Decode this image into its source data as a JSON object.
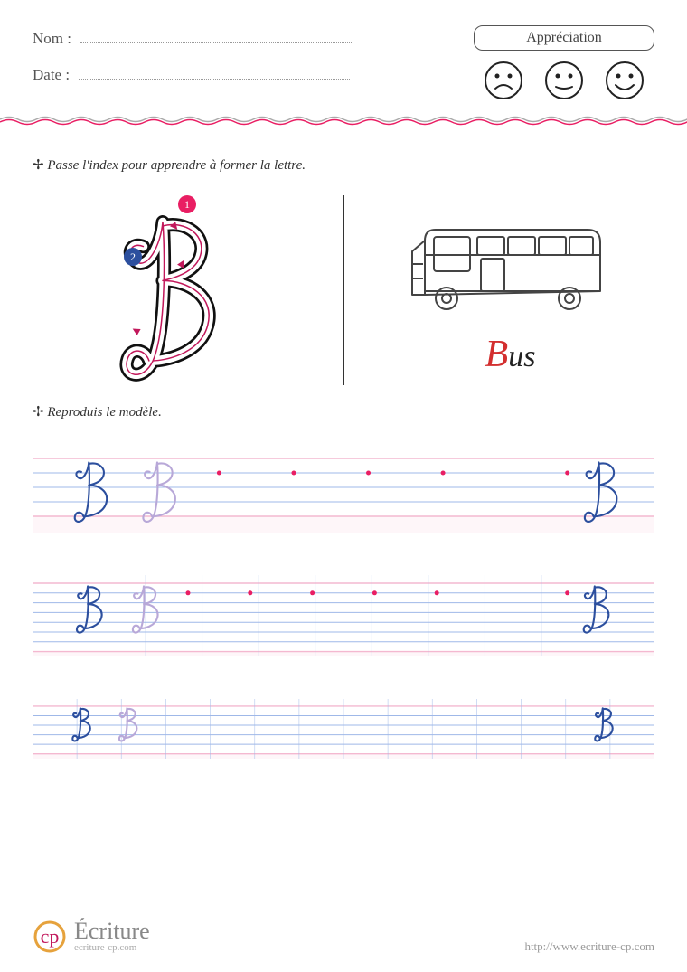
{
  "header": {
    "name_label": "Nom :",
    "date_label": "Date :",
    "appreciation_label": "Appréciation",
    "faces": [
      "sad",
      "neutral",
      "happy"
    ],
    "face_stroke": "#222222"
  },
  "colors": {
    "text": "#333333",
    "divider_gray": "#aaaaaa",
    "divider_pink": "#e91e63",
    "rule_blue": "#9fb8e8",
    "rule_pink": "#f4b9d0",
    "rule_red": "#e91e63",
    "letter_main": "#2c4f9e",
    "letter_faded": "#b8a8d8",
    "dot_red": "#e91e63",
    "guide_pink": "#e91e63",
    "guide_blue": "#2c4f9e",
    "guide_arrow": "#c2185b",
    "bus_stroke": "#444444",
    "word_cap": "#d32f2f",
    "word_rest": "#222222",
    "logo_ring": "#e6a23c",
    "logo_inner": "#c2185b"
  },
  "instructions": {
    "trace": "Passe l'index pour apprendre à former la lettre.",
    "reproduce": "Reproduis le modèle."
  },
  "demo": {
    "letter": "B",
    "stroke_markers": [
      {
        "n": "1",
        "color": "#e91e63"
      },
      {
        "n": "2",
        "color": "#2c4f9e"
      }
    ],
    "word_cap": "B",
    "word_rest": "us"
  },
  "practice_rows": [
    {
      "height": 100,
      "h_lines": [
        0.18,
        0.34,
        0.5,
        0.66,
        0.82
      ],
      "top_color": "#f4b9d0",
      "mid_color": "#9fb8e8",
      "bottom_tint": "#f4b9d0",
      "v_lines": 0,
      "letters": [
        {
          "x": 0.06,
          "scale": 1.0,
          "color": "#2c4f9e"
        },
        {
          "x": 0.17,
          "scale": 1.0,
          "color": "#b8a8d8"
        },
        {
          "x": 0.88,
          "scale": 1.0,
          "color": "#2c4f9e"
        }
      ],
      "dots": [
        0.3,
        0.42,
        0.54,
        0.66,
        0.86
      ]
    },
    {
      "height": 90,
      "h_lines": [
        0.1,
        0.22,
        0.34,
        0.46,
        0.58,
        0.7,
        0.82,
        0.94
      ],
      "top_color": "#f4b9d0",
      "mid_color": "#9fb8e8",
      "bottom_tint": "#f4b9d0",
      "v_lines": 11,
      "letters": [
        {
          "x": 0.065,
          "scale": 0.78,
          "color": "#2c4f9e"
        },
        {
          "x": 0.155,
          "scale": 0.78,
          "color": "#b8a8d8"
        },
        {
          "x": 0.88,
          "scale": 0.78,
          "color": "#2c4f9e"
        }
      ],
      "dots": [
        0.25,
        0.35,
        0.45,
        0.55,
        0.65,
        0.86
      ]
    },
    {
      "height": 66,
      "h_lines": [
        0.12,
        0.28,
        0.44,
        0.6,
        0.76,
        0.92
      ],
      "top_color": "#f4b9d0",
      "mid_color": "#9fb8e8",
      "bottom_tint": "#f4b9d0",
      "v_lines": 14,
      "letters": [
        {
          "x": 0.06,
          "scale": 0.55,
          "color": "#2c4f9e"
        },
        {
          "x": 0.135,
          "scale": 0.55,
          "color": "#b8a8d8"
        },
        {
          "x": 0.9,
          "scale": 0.55,
          "color": "#2c4f9e"
        }
      ],
      "dots": []
    }
  ],
  "footer": {
    "brand": "Écriture",
    "brand_sub": "ecriture-cp.com",
    "url": "http://www.ecriture-cp.com"
  }
}
